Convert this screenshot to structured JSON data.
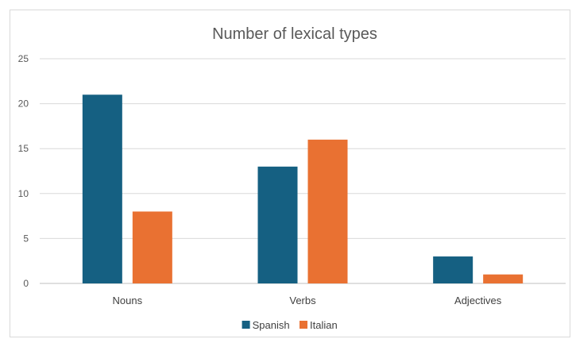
{
  "chart_data": {
    "type": "bar",
    "title": "Number of lexical types",
    "xlabel": "",
    "ylabel": "",
    "categories": [
      "Nouns",
      "Verbs",
      "Adjectives"
    ],
    "series": [
      {
        "name": "Spanish",
        "values": [
          21,
          13,
          3
        ],
        "color": "#156082"
      },
      {
        "name": "Italian",
        "values": [
          8,
          16,
          1
        ],
        "color": "#e97132"
      }
    ],
    "ylim": [
      0,
      25
    ],
    "yticks": [
      0,
      5,
      10,
      15,
      20,
      25
    ],
    "grid": true,
    "legend_position": "bottom"
  }
}
